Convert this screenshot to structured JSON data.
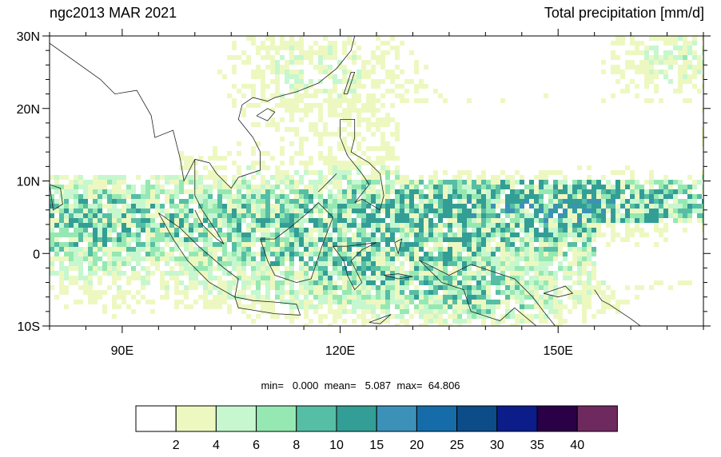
{
  "figure": {
    "title_left": "ngc2013 MAR 2021",
    "title_right": "Total precipitation [mm/d]"
  },
  "map": {
    "projection": "cylindrical equidistant",
    "lon_range": [
      80,
      170
    ],
    "lat_range": [
      -10,
      30
    ],
    "lat_ticks": [
      {
        "value": 30,
        "label": "30N"
      },
      {
        "value": 20,
        "label": "20N"
      },
      {
        "value": 10,
        "label": "10N"
      },
      {
        "value": 0,
        "label": "0"
      },
      {
        "value": -10,
        "label": "10S"
      }
    ],
    "lon_ticks": [
      {
        "value": 90,
        "label": "90E"
      },
      {
        "value": 120,
        "label": "120E"
      },
      {
        "value": 150,
        "label": "150E"
      }
    ]
  },
  "stats": {
    "min_label": "min=",
    "min_value": "0.000",
    "mean_label": "mean=",
    "mean_value": "5.087",
    "max_label": "max=",
    "max_value": "64.806"
  },
  "colorbar": {
    "colors": [
      "#ffffff",
      "#edf8c1",
      "#c6f7cf",
      "#96e8b2",
      "#56bea4",
      "#339e95",
      "#3c91b8",
      "#156ca8",
      "#0c4c88",
      "#0c1d8a",
      "#2a0046",
      "#6e2a5e"
    ],
    "labels": [
      "2",
      "4",
      "6",
      "8",
      "10",
      "15",
      "20",
      "25",
      "30",
      "35",
      "40"
    ]
  }
}
